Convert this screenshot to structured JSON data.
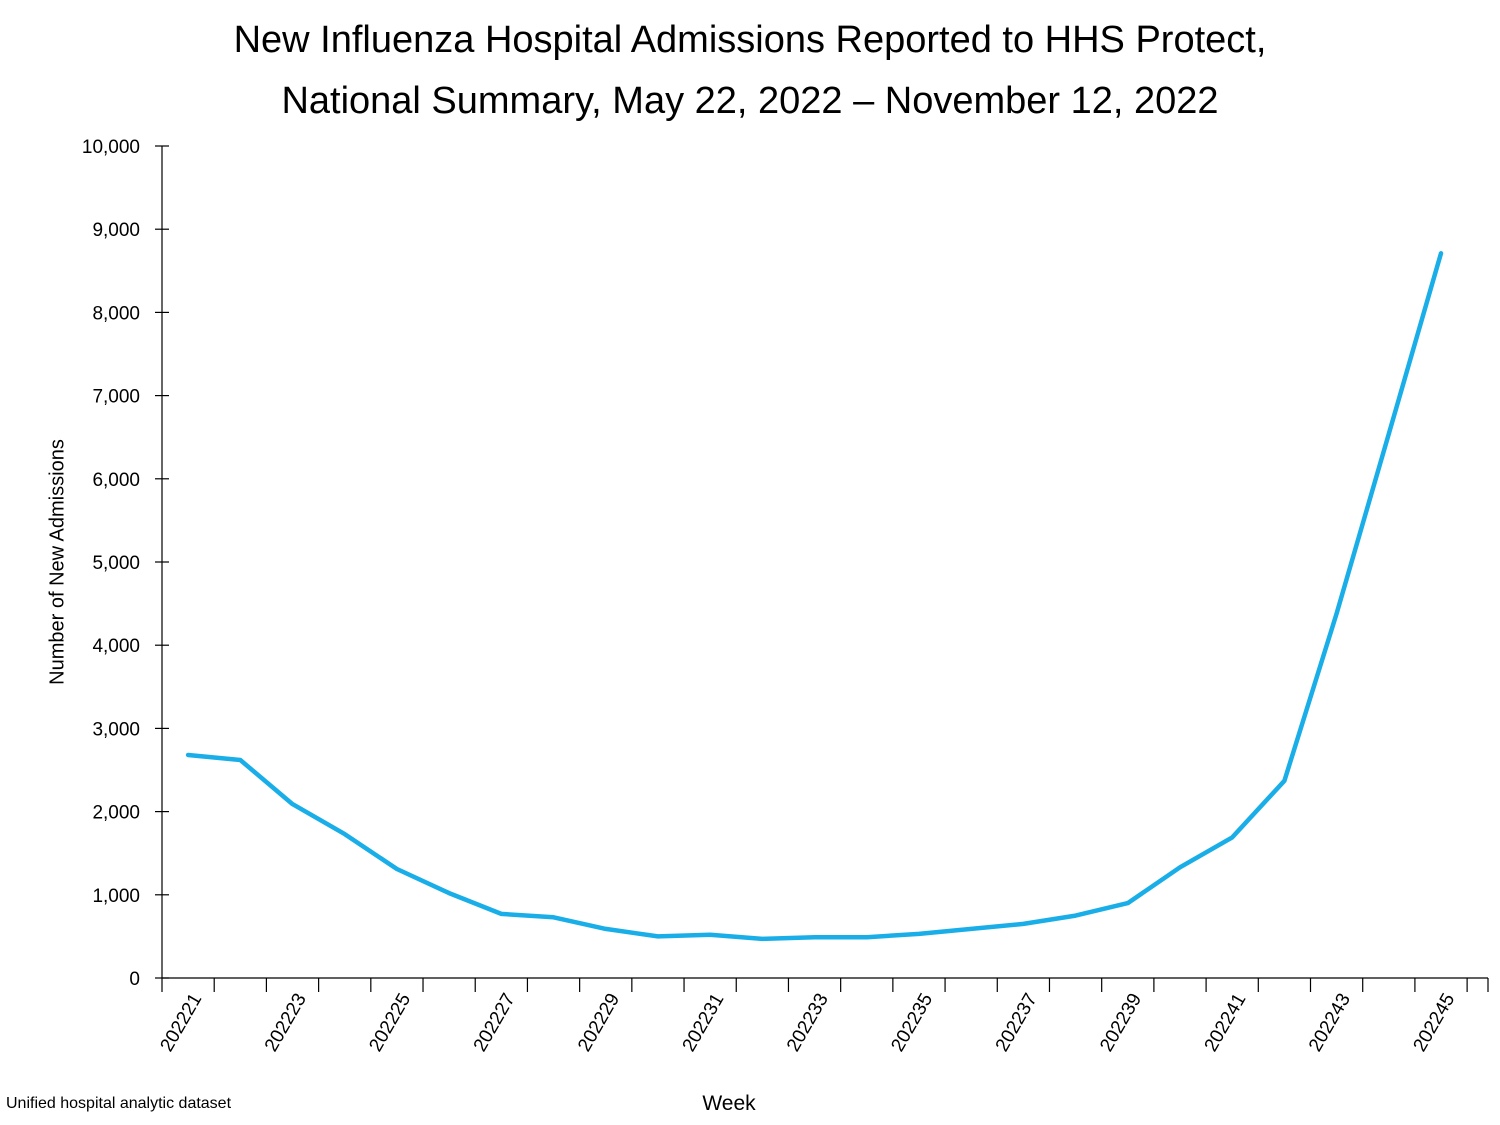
{
  "chart_data": {
    "type": "line",
    "title": [
      "New Influenza Hospital Admissions Reported to HHS Protect,",
      "National Summary, May 22, 2022 – November 12, 2022"
    ],
    "xlabel": "Week",
    "ylabel": "Number of New Admissions",
    "source_note": "Unified hospital analytic dataset",
    "ylim": [
      0,
      10000
    ],
    "yticks": [
      0,
      1000,
      2000,
      3000,
      4000,
      5000,
      6000,
      7000,
      8000,
      9000,
      10000
    ],
    "ytick_labels": [
      "0",
      "1,000",
      "2,000",
      "3,000",
      "4,000",
      "5,000",
      "6,000",
      "7,000",
      "8,000",
      "9,000",
      "10,000"
    ],
    "x": [
      "202221",
      "202222",
      "202223",
      "202224",
      "202225",
      "202226",
      "202227",
      "202228",
      "202229",
      "202230",
      "202231",
      "202232",
      "202233",
      "202234",
      "202235",
      "202236",
      "202237",
      "202238",
      "202239",
      "202240",
      "202241",
      "202242",
      "202243",
      "202244",
      "202245"
    ],
    "xtick_labels_shown": [
      "202221",
      "202223",
      "202225",
      "202227",
      "202229",
      "202231",
      "202233",
      "202235",
      "202237",
      "202239",
      "202241",
      "202243",
      "202245"
    ],
    "series": [
      {
        "color": "#1aaee8",
        "values": [
          2680,
          2620,
          2090,
          1730,
          1310,
          1020,
          770,
          730,
          590,
          500,
          520,
          470,
          490,
          490,
          530,
          590,
          650,
          750,
          900,
          1330,
          1690,
          2370,
          4380,
          6540,
          8710
        ]
      }
    ],
    "grid": false,
    "legend": "none"
  }
}
